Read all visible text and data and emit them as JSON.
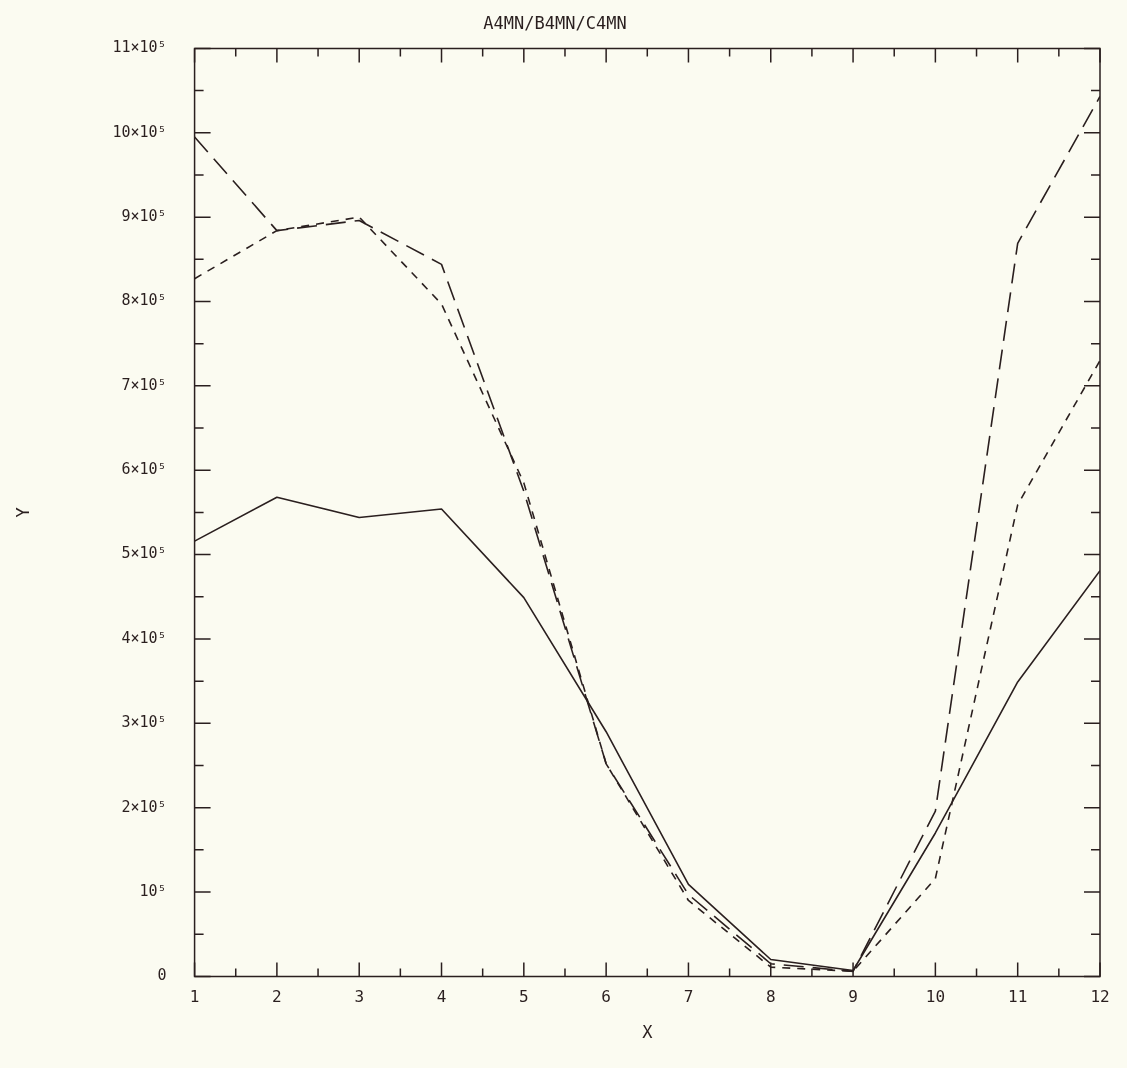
{
  "chart_data": {
    "type": "line",
    "title": "A4MN/B4MN/C4MN",
    "xlabel": "X",
    "ylabel": "Y",
    "x": [
      1,
      2,
      3,
      4,
      5,
      6,
      7,
      8,
      9,
      10,
      11,
      12
    ],
    "xlim": [
      1,
      12
    ],
    "xticks": [
      1,
      {
        "value": 1.5,
        "label": null
      },
      2,
      {
        "value": 2.5,
        "label": null
      },
      3,
      {
        "value": 3.5,
        "label": null
      },
      4,
      {
        "value": 4.5,
        "label": null
      },
      5,
      {
        "value": 5.5,
        "label": null
      },
      6,
      {
        "value": 6.5,
        "label": null
      },
      7,
      {
        "value": 7.5,
        "label": null
      },
      8,
      {
        "value": 8.5,
        "label": null
      },
      9,
      {
        "value": 9.5,
        "label": null
      },
      10,
      {
        "value": 10.5,
        "label": null
      },
      11,
      {
        "value": 11.5,
        "label": null
      },
      12
    ],
    "series": [
      {
        "color": "#2a1f1f",
        "line_style": "solid",
        "values": [
          516000,
          568000,
          544000,
          554000,
          449000,
          290000,
          109000,
          20000,
          7000,
          170000,
          349000,
          481000
        ]
      },
      {
        "color": "#2a1f1f",
        "line_style": "dashed",
        "values": [
          995000,
          884000,
          896000,
          844000,
          575000,
          252000,
          97000,
          15000,
          6000,
          196000,
          869000,
          1043000
        ]
      },
      {
        "color": "#2a1f1f",
        "line_style": "dotted",
        "values": [
          827000,
          884000,
          900000,
          797000,
          585000,
          252000,
          90000,
          11000,
          6000,
          116000,
          559000,
          730000
        ]
      }
    ],
    "ylim": [
      0,
      1100000
    ],
    "yticks": [
      {
        "value": 0,
        "label": "0"
      },
      {
        "value": 50000,
        "label": null
      },
      {
        "value": 100000,
        "label": "10⁵"
      },
      {
        "value": 150000,
        "label": null
      },
      {
        "value": 200000,
        "label": "2×10⁵"
      },
      {
        "value": 250000,
        "label": null
      },
      {
        "value": 300000,
        "label": "3×10⁵"
      },
      {
        "value": 350000,
        "label": null
      },
      {
        "value": 400000,
        "label": "4×10⁵"
      },
      {
        "value": 450000,
        "label": null
      },
      {
        "value": 500000,
        "label": "5×10⁵"
      },
      {
        "value": 550000,
        "label": null
      },
      {
        "value": 600000,
        "label": "6×10⁵"
      },
      {
        "value": 650000,
        "label": null
      },
      {
        "value": 700000,
        "label": "7×10⁵"
      },
      {
        "value": 750000,
        "label": null
      },
      {
        "value": 800000,
        "label": "8×10⁵"
      },
      {
        "value": 850000,
        "label": null
      },
      {
        "value": 900000,
        "label": "9×10⁵"
      },
      {
        "value": 950000,
        "label": null
      },
      {
        "value": 1000000,
        "label": "10×10⁵"
      },
      {
        "value": 1050000,
        "label": null
      },
      {
        "value": 1100000,
        "label": "11×10⁵"
      }
    ],
    "grid": false,
    "legend": false,
    "marker": "none"
  }
}
